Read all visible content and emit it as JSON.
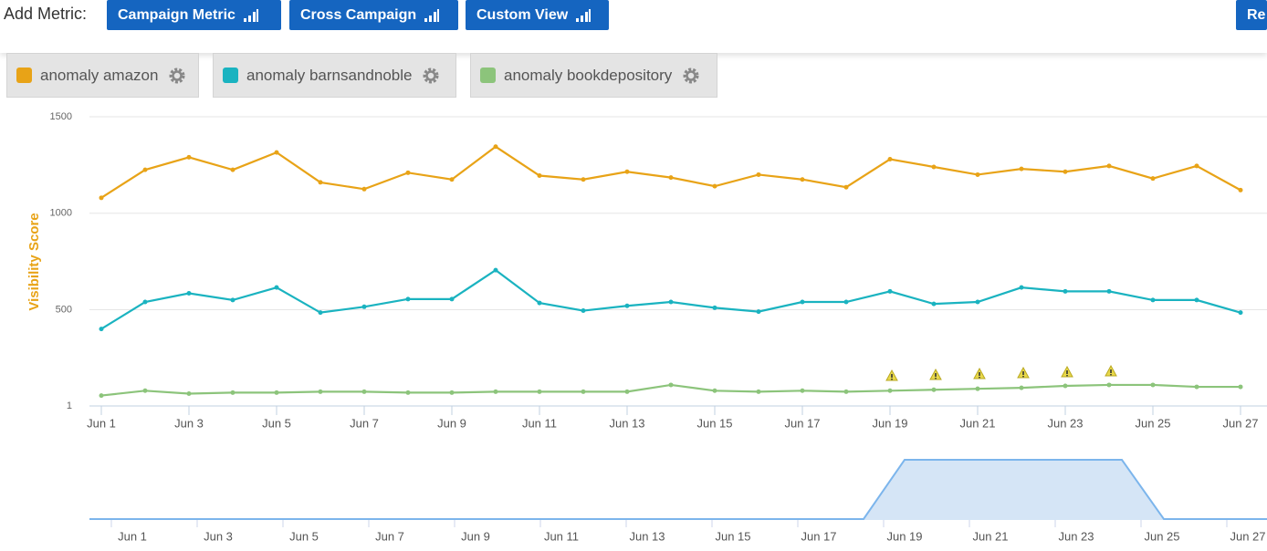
{
  "toolbar": {
    "label": "Add Metric:",
    "buttons": [
      "Campaign Metric",
      "Cross Campaign",
      "Custom View",
      "Re"
    ]
  },
  "chart_data": {
    "type": "line",
    "y_label": "Visibility Score",
    "categories": [
      "Jun 1",
      null,
      "Jun 3",
      null,
      "Jun 5",
      null,
      "Jun 7",
      null,
      "Jun 9",
      null,
      "Jun 11",
      null,
      "Jun 13",
      null,
      "Jun 15",
      null,
      "Jun 17",
      null,
      "Jun 19",
      null,
      "Jun 21",
      null,
      "Jun 23",
      null,
      "Jun 25",
      null,
      "Jun 27"
    ],
    "series": [
      {
        "name": "anomaly amazon",
        "color": "#e8a317",
        "values": [
          1080,
          1225,
          1290,
          1225,
          1315,
          1160,
          1125,
          1210,
          1175,
          1345,
          1195,
          1175,
          1215,
          1185,
          1140,
          1200,
          1175,
          1135,
          1280,
          1240,
          1200,
          1230,
          1215,
          1245,
          1180,
          1245,
          1120
        ]
      },
      {
        "name": "anomaly barnsandnoble",
        "color": "#1ab3c0",
        "values": [
          400,
          540,
          585,
          550,
          615,
          485,
          515,
          555,
          555,
          705,
          535,
          495,
          520,
          540,
          510,
          490,
          540,
          540,
          595,
          530,
          540,
          615,
          595,
          595,
          550,
          550,
          485
        ]
      },
      {
        "name": "anomaly bookdepository",
        "color": "#8cc47b",
        "values": [
          55,
          80,
          65,
          70,
          70,
          75,
          75,
          70,
          70,
          75,
          75,
          75,
          75,
          110,
          80,
          75,
          80,
          75,
          80,
          85,
          90,
          95,
          105,
          110,
          110,
          100,
          100
        ]
      }
    ],
    "ylim": [
      1,
      1500
    ],
    "yticks": [
      1,
      500,
      1000,
      1500
    ],
    "grid": true
  }
}
